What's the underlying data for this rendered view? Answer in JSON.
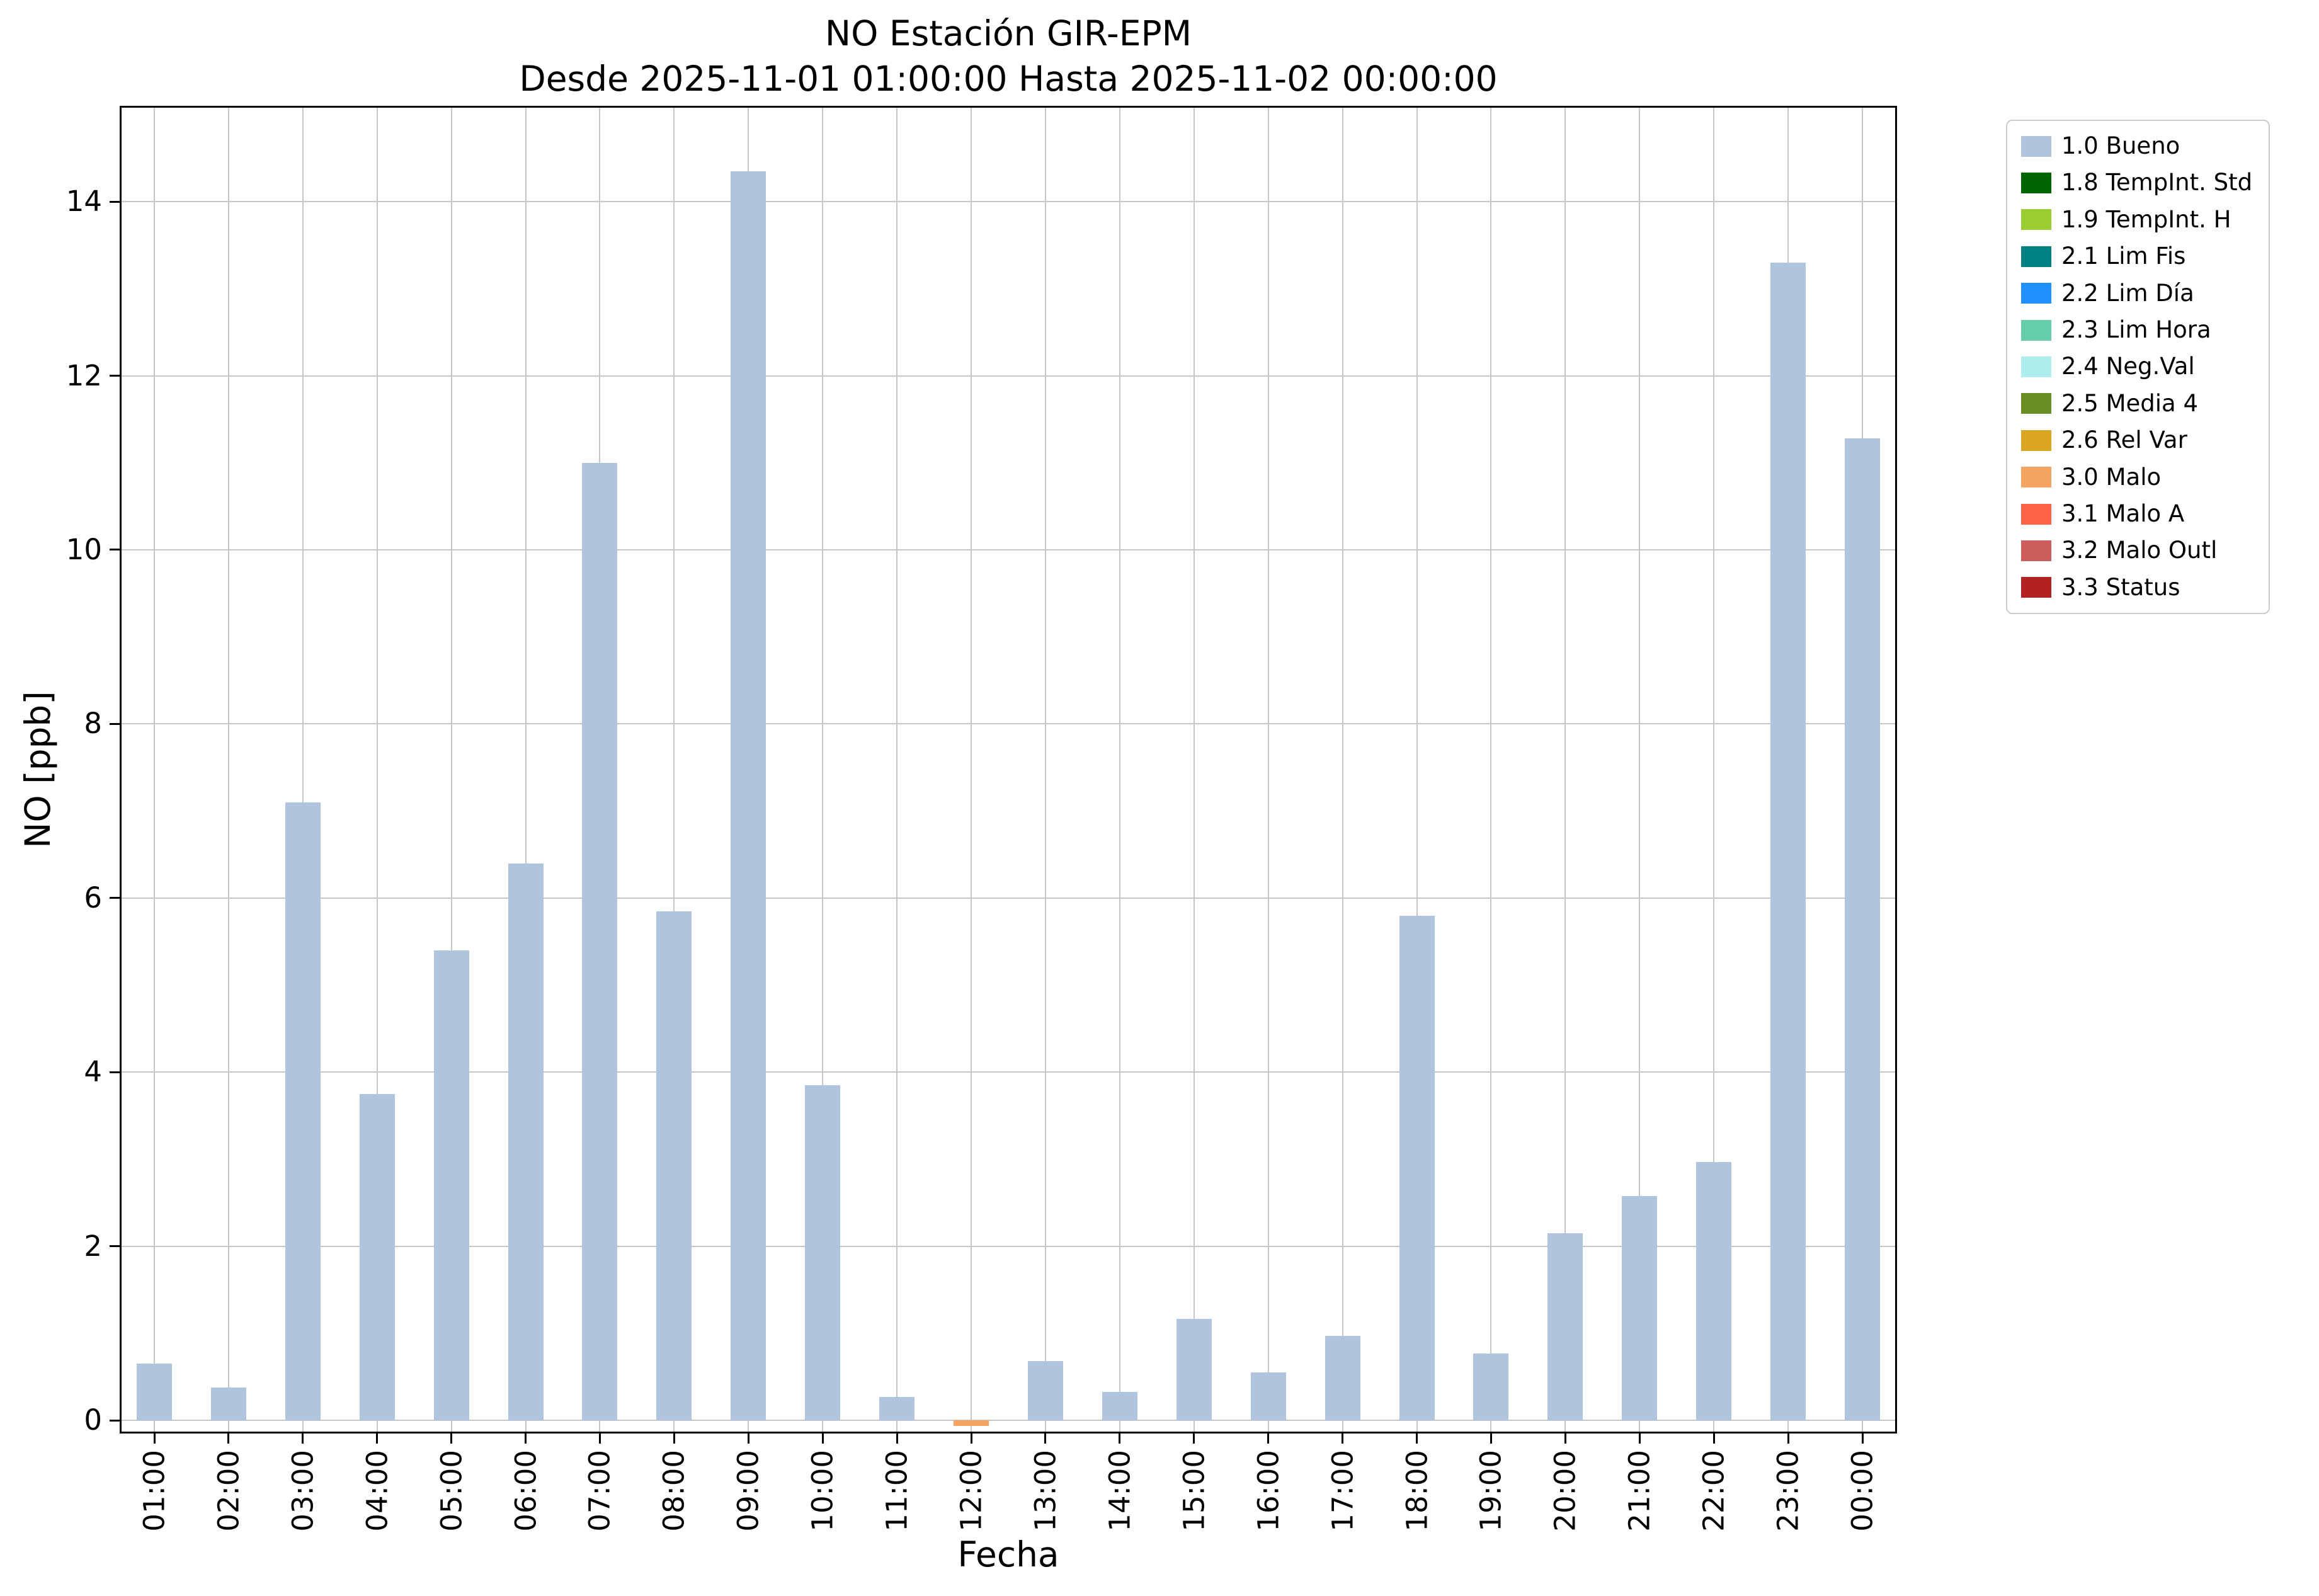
{
  "chart_data": {
    "type": "bar",
    "title": "NO Estación GIR-EPM",
    "subtitle": "Desde 2025-11-01 01:00:00 Hasta 2025-11-02 00:00:00",
    "xlabel": "Fecha",
    "ylabel": "NO [ppb]",
    "ylim": [
      -0.15,
      15.1
    ],
    "yticks": [
      0,
      2,
      4,
      6,
      8,
      10,
      12,
      14
    ],
    "grid": true,
    "legend_position": "outside-right",
    "categories": [
      "01:00",
      "02:00",
      "03:00",
      "04:00",
      "05:00",
      "06:00",
      "07:00",
      "08:00",
      "09:00",
      "10:00",
      "11:00",
      "12:00",
      "13:00",
      "14:00",
      "15:00",
      "16:00",
      "17:00",
      "18:00",
      "19:00",
      "20:00",
      "21:00",
      "22:00",
      "23:00",
      "00:00"
    ],
    "values": [
      0.65,
      0.38,
      7.1,
      3.75,
      5.4,
      6.4,
      11.0,
      5.85,
      14.35,
      3.85,
      0.27,
      -0.06,
      0.68,
      0.33,
      1.17,
      0.55,
      0.97,
      5.8,
      0.77,
      2.15,
      2.58,
      2.97,
      13.3,
      11.28
    ],
    "bar_color_default": "#B0C4DE",
    "bar_colors": [
      "#B0C4DE",
      "#B0C4DE",
      "#B0C4DE",
      "#B0C4DE",
      "#B0C4DE",
      "#B0C4DE",
      "#B0C4DE",
      "#B0C4DE",
      "#B0C4DE",
      "#B0C4DE",
      "#B0C4DE",
      "#F4A460",
      "#B0C4DE",
      "#B0C4DE",
      "#B0C4DE",
      "#B0C4DE",
      "#B0C4DE",
      "#B0C4DE",
      "#B0C4DE",
      "#B0C4DE",
      "#B0C4DE",
      "#B0C4DE",
      "#B0C4DE",
      "#B0C4DE"
    ],
    "legend": [
      {
        "label": "1.0 Bueno",
        "color": "#B0C4DE"
      },
      {
        "label": "1.8 TempInt. Std",
        "color": "#006400"
      },
      {
        "label": "1.9 TempInt. H",
        "color": "#9ACD32"
      },
      {
        "label": "2.1 Lim Fis",
        "color": "#008080"
      },
      {
        "label": "2.2 Lim Día",
        "color": "#1E90FF"
      },
      {
        "label": "2.3 Lim Hora",
        "color": "#66CDAA"
      },
      {
        "label": "2.4 Neg.Val",
        "color": "#AFEEEE"
      },
      {
        "label": "2.5 Media 4",
        "color": "#6B8E23"
      },
      {
        "label": "2.6 Rel Var",
        "color": "#DAA520"
      },
      {
        "label": "3.0 Malo",
        "color": "#F4A460"
      },
      {
        "label": "3.1 Malo A",
        "color": "#FF6347"
      },
      {
        "label": "3.2 Malo Outl",
        "color": "#CD5C5C"
      },
      {
        "label": "3.3 Status",
        "color": "#B22222"
      }
    ]
  }
}
